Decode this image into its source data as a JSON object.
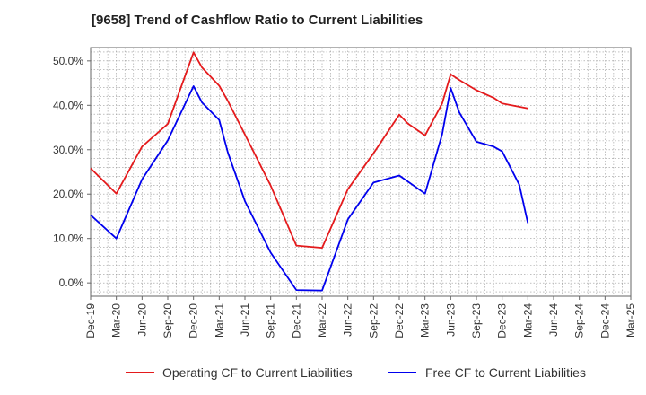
{
  "chart_data": {
    "type": "line",
    "title": "[9658]  Trend of Cashflow Ratio to Current Liabilities",
    "xlabel": "",
    "ylabel": "",
    "categories": [
      "Dec-19",
      "Mar-20",
      "Jun-20",
      "Sep-20",
      "Dec-20",
      "Mar-21",
      "Jun-21",
      "Sep-21",
      "Dec-21",
      "Mar-22",
      "Jun-22",
      "Sep-22",
      "Dec-22",
      "Mar-23",
      "Jun-23",
      "Sep-23",
      "Dec-23",
      "Mar-24",
      "Jun-24",
      "Sep-24",
      "Dec-24",
      "Mar-25"
    ],
    "x": [
      "Dec-19",
      "Feb-20",
      "Mar-20",
      "Jun-20",
      "Aug-20",
      "Sep-20",
      "Dec-20",
      "Jan-21",
      "Mar-21",
      "Apr-21",
      "Jun-21",
      "Sep-21",
      "Dec-21",
      "Mar-22",
      "Jun-22",
      "Sep-22",
      "Dec-22",
      "Jan-23",
      "Mar-23",
      "May-23",
      "Jun-23",
      "Jul-23",
      "Sep-23",
      "Nov-23",
      "Dec-23",
      "Mar-24"
    ],
    "series": [
      {
        "name": "Operating CF to Current Liabilities",
        "color": "#e41a1c",
        "x": [
          "Dec-19",
          "Mar-20",
          "Jun-20",
          "Aug-20",
          "Sep-20",
          "Dec-20",
          "Jan-21",
          "Mar-21",
          "Apr-21",
          "Jun-21",
          "Sep-21",
          "Dec-21",
          "Mar-22",
          "Jun-22",
          "Sep-22",
          "Dec-22",
          "Jan-23",
          "Mar-23",
          "May-23",
          "Jun-23",
          "Jul-23",
          "Sep-23",
          "Nov-23",
          "Dec-23",
          "Mar-24"
        ],
        "values": [
          25.8,
          20.1,
          30.7,
          34.1,
          35.8,
          51.9,
          48.5,
          44.4,
          41.0,
          33.4,
          21.9,
          8.4,
          7.9,
          21.1,
          29.2,
          37.9,
          35.9,
          33.2,
          40.4,
          47.0,
          45.7,
          43.4,
          41.7,
          40.4,
          39.3
        ]
      },
      {
        "name": "Free CF to Current Liabilities",
        "color": "#0000ee",
        "x": [
          "Dec-19",
          "Mar-20",
          "Jun-20",
          "Sep-20",
          "Dec-20",
          "Jan-21",
          "Mar-21",
          "Apr-21",
          "Jun-21",
          "Sep-21",
          "Dec-21",
          "Mar-22",
          "Jun-22",
          "Sep-22",
          "Dec-22",
          "Mar-23",
          "May-23",
          "Jun-23",
          "Jul-23",
          "Sep-23",
          "Nov-23",
          "Dec-23",
          "Feb-24",
          "Mar-24"
        ],
        "values": [
          15.3,
          10.0,
          23.3,
          32.1,
          44.3,
          40.6,
          36.7,
          29.4,
          18.4,
          6.8,
          -1.6,
          -1.7,
          14.3,
          22.6,
          24.2,
          20.1,
          33.5,
          43.9,
          38.4,
          31.8,
          30.7,
          29.6,
          22.1,
          13.5
        ]
      }
    ],
    "ylim": [
      -3,
      53
    ],
    "yticks": [
      0,
      10,
      20,
      30,
      40,
      50
    ],
    "ytick_labels": [
      "0.0%",
      "10.0%",
      "20.0%",
      "30.0%",
      "40.0%",
      "50.0%"
    ],
    "grid": true,
    "legend_position": "bottom"
  }
}
